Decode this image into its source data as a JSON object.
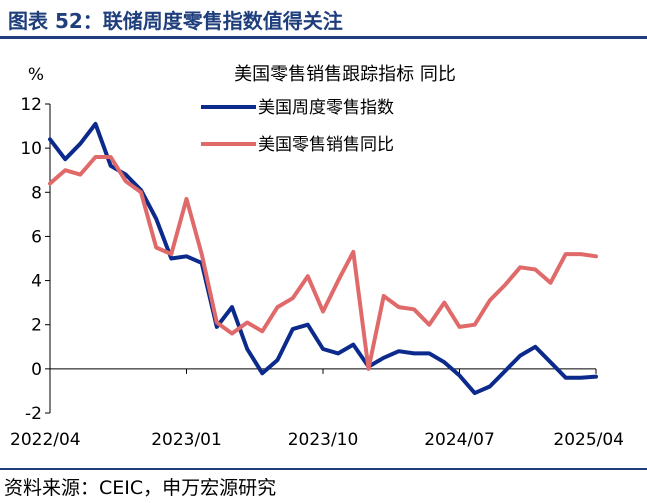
{
  "header": {
    "title": "图表 52：联储周度零售指数值得关注"
  },
  "footer": {
    "source": "资料来源：CEIC，申万宏源研究"
  },
  "colors": {
    "index": "#0b2a8c",
    "yoy": "#e06a6a",
    "brand": "#1f3e7c"
  },
  "chart_data": {
    "type": "line",
    "title": "美国零售销售跟踪指标 同比",
    "ylabel": "%",
    "xlabel": "",
    "ylim": [
      -2,
      12
    ],
    "yticks": [
      "-2",
      "0",
      "2",
      "4",
      "6",
      "8",
      "10",
      "12"
    ],
    "xticks": [
      "2022/04",
      "2023/01",
      "2023/10",
      "2024/07",
      "2025/04"
    ],
    "legend_position": "top-center",
    "series": [
      {
        "name": "美国周度零售指数",
        "x": [
          "2022/04",
          "2022/05",
          "2022/06",
          "2022/07",
          "2022/08",
          "2022/09",
          "2022/10",
          "2022/11",
          "2022/12",
          "2023/01",
          "2023/02",
          "2023/03",
          "2023/04",
          "2023/05",
          "2023/06",
          "2023/07",
          "2023/08",
          "2023/09",
          "2023/10",
          "2023/11",
          "2023/12",
          "2024/01",
          "2024/02",
          "2024/03",
          "2024/04",
          "2024/05",
          "2024/06",
          "2024/07",
          "2024/08",
          "2024/09",
          "2024/10",
          "2024/11",
          "2024/12",
          "2025/01",
          "2025/02",
          "2025/03",
          "2025/04"
        ],
        "values": [
          10.4,
          9.5,
          10.2,
          11.1,
          9.2,
          8.8,
          8.1,
          6.8,
          5.0,
          5.1,
          4.8,
          1.9,
          2.8,
          0.9,
          -0.2,
          0.4,
          1.8,
          2.0,
          0.9,
          0.7,
          1.1,
          0.1,
          0.5,
          0.8,
          0.7,
          0.7,
          0.3,
          -0.3,
          -1.1,
          -0.8,
          -0.1,
          0.6,
          1.0,
          0.3,
          -0.4,
          -0.4,
          -0.35
        ]
      },
      {
        "name": "美国零售销售同比",
        "x": [
          "2022/04",
          "2022/05",
          "2022/06",
          "2022/07",
          "2022/08",
          "2022/09",
          "2022/10",
          "2022/11",
          "2022/12",
          "2023/01",
          "2023/02",
          "2023/03",
          "2023/04",
          "2023/05",
          "2023/06",
          "2023/07",
          "2023/08",
          "2023/09",
          "2023/10",
          "2023/11",
          "2023/12",
          "2024/01",
          "2024/02",
          "2024/03",
          "2024/04",
          "2024/05",
          "2024/06",
          "2024/07",
          "2024/08",
          "2024/09",
          "2024/10",
          "2024/11",
          "2024/12",
          "2025/01",
          "2025/02",
          "2025/03",
          "2025/04"
        ],
        "values": [
          8.4,
          9.0,
          8.8,
          9.6,
          9.6,
          8.5,
          8.0,
          5.5,
          5.2,
          7.7,
          5.2,
          2.1,
          1.6,
          2.1,
          1.7,
          2.8,
          3.2,
          4.2,
          2.6,
          4.0,
          5.3,
          0.0,
          3.3,
          2.8,
          2.7,
          2.0,
          3.0,
          1.9,
          2.0,
          3.1,
          3.8,
          4.6,
          4.5,
          3.9,
          5.2,
          5.2,
          5.1
        ]
      }
    ]
  }
}
